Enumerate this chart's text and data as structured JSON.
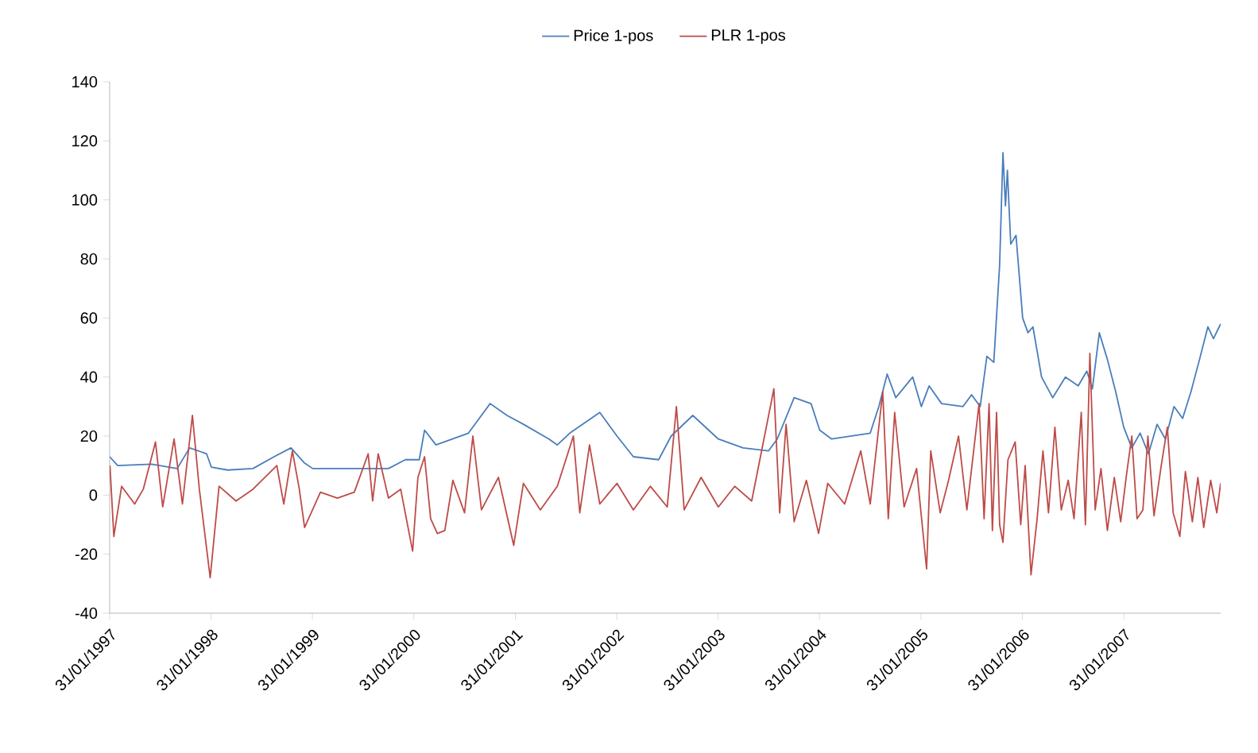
{
  "chart_data": {
    "type": "line",
    "series": [
      {
        "name": "Price 1-pos",
        "color": "#4a7ebb",
        "x": [
          "1997-01-31",
          "1997-03-01",
          "1997-07-01",
          "1997-10-01",
          "1997-11-15",
          "1998-01-15",
          "1998-02-01",
          "1998-04-01",
          "1998-07-01",
          "1998-09-15",
          "1998-11-15",
          "1999-01-01",
          "1999-02-01",
          "1999-07-01",
          "1999-11-01",
          "2000-01-01",
          "2000-02-20",
          "2000-03-10",
          "2000-04-20",
          "2000-08-15",
          "2000-11-01",
          "2001-01-01",
          "2001-03-01",
          "2001-06-01",
          "2001-07-01",
          "2001-08-15",
          "2001-12-01",
          "2002-02-01",
          "2002-04-01",
          "2002-07-01",
          "2002-08-15",
          "2002-11-01",
          "2003-02-01",
          "2003-05-01",
          "2003-08-01",
          "2003-09-01",
          "2003-11-01",
          "2004-01-01",
          "2004-02-01",
          "2004-03-15",
          "2004-08-01",
          "2004-09-01",
          "2004-10-01",
          "2004-11-01",
          "2005-01-01",
          "2005-02-01",
          "2005-03-01",
          "2005-04-15",
          "2005-07-01",
          "2005-08-01",
          "2005-09-01",
          "2005-09-25",
          "2005-10-20",
          "2005-11-10",
          "2005-11-22",
          "2005-12-01",
          "2005-12-08",
          "2005-12-20",
          "2006-01-08",
          "2006-02-01",
          "2006-02-20",
          "2006-03-10",
          "2006-04-10",
          "2006-05-20",
          "2006-07-05",
          "2006-08-20",
          "2006-09-20",
          "2006-10-10",
          "2006-11-04",
          "2006-12-03",
          "2007-01-02",
          "2007-01-31",
          "2007-03-01",
          "2007-03-31",
          "2007-04-30",
          "2007-05-31",
          "2007-06-30",
          "2007-07-31",
          "2007-08-31",
          "2007-09-30",
          "2007-10-31",
          "2007-11-30",
          "2007-12-20",
          "2008-01-15"
        ],
        "values": [
          13,
          10,
          10.5,
          9,
          16,
          14,
          9.5,
          8.5,
          9,
          13,
          16,
          11,
          9,
          9,
          9,
          12,
          12,
          22,
          17,
          21,
          31,
          27,
          24,
          19,
          17,
          21,
          28,
          20,
          13,
          12,
          20,
          27,
          19,
          16,
          15,
          19,
          33,
          31,
          22,
          19,
          21,
          30,
          41,
          33,
          40,
          30,
          37,
          31,
          30,
          34,
          30,
          47,
          45,
          78,
          116,
          98,
          110,
          85,
          88,
          60,
          55,
          57,
          40,
          33,
          40,
          37,
          42,
          36,
          55,
          46,
          35,
          23,
          16,
          21,
          14,
          24,
          19,
          30,
          26,
          35,
          46,
          57,
          53,
          58
        ]
      },
      {
        "name": "PLR 1-pos",
        "color": "#be4b48",
        "x": [
          "1997-02-01",
          "1997-02-15",
          "1997-03-15",
          "1997-05-01",
          "1997-06-01",
          "1997-07-15",
          "1997-08-10",
          "1997-09-20",
          "1997-10-20",
          "1997-11-25",
          "1997-12-20",
          "1998-01-28",
          "1998-03-01",
          "1998-05-01",
          "1998-07-01",
          "1998-09-25",
          "1998-10-20",
          "1998-11-20",
          "1998-12-15",
          "1999-01-03",
          "1999-03-01",
          "1999-05-01",
          "1999-07-01",
          "1999-08-20",
          "1999-09-05",
          "1999-09-25",
          "1999-11-01",
          "1999-12-15",
          "2000-01-27",
          "2000-02-15",
          "2000-03-10",
          "2000-04-01",
          "2000-04-25",
          "2000-05-22",
          "2000-06-20",
          "2000-08-01",
          "2000-08-31",
          "2000-10-01",
          "2000-12-01",
          "2001-01-25",
          "2001-03-01",
          "2001-05-01",
          "2001-07-01",
          "2001-08-28",
          "2001-09-20",
          "2001-10-25",
          "2001-12-01",
          "2002-02-01",
          "2002-04-01",
          "2002-06-01",
          "2002-08-01",
          "2002-09-03",
          "2002-10-01",
          "2002-12-01",
          "2003-02-01",
          "2003-04-01",
          "2003-06-01",
          "2003-08-20",
          "2003-09-10",
          "2003-10-03",
          "2003-11-01",
          "2003-12-15",
          "2004-01-28",
          "2004-03-01",
          "2004-05-01",
          "2004-06-28",
          "2004-08-01",
          "2004-09-15",
          "2004-10-05",
          "2004-10-28",
          "2004-12-01",
          "2005-01-15",
          "2005-02-20",
          "2005-03-07",
          "2005-04-10",
          "2005-05-10",
          "2005-06-15",
          "2005-07-15",
          "2005-08-28",
          "2005-09-15",
          "2005-10-03",
          "2005-10-15",
          "2005-10-30",
          "2005-11-10",
          "2005-11-22",
          "2005-12-10",
          "2006-01-05",
          "2006-01-25",
          "2006-02-10",
          "2006-03-03",
          "2006-03-25",
          "2006-04-15",
          "2006-05-05",
          "2006-05-28",
          "2006-06-20",
          "2006-07-15",
          "2006-08-05",
          "2006-08-31",
          "2006-09-15",
          "2006-10-01",
          "2006-10-20",
          "2006-11-10",
          "2006-12-03",
          "2006-12-28",
          "2007-01-20",
          "2007-02-10",
          "2007-03-01",
          "2007-03-20",
          "2007-04-10",
          "2007-04-28",
          "2007-05-20",
          "2007-06-15",
          "2007-07-07",
          "2007-07-28",
          "2007-08-21",
          "2007-09-10",
          "2007-10-05",
          "2007-10-25",
          "2007-11-15",
          "2007-12-10",
          "2008-01-01",
          "2008-01-15"
        ],
        "values": [
          10,
          -14,
          3,
          -3,
          2,
          18,
          -4,
          19,
          -3,
          27,
          2,
          -28,
          3,
          -2,
          2,
          10,
          -3,
          15,
          2,
          -11,
          1,
          -1,
          1,
          14,
          -2,
          14,
          -1,
          2,
          -19,
          6,
          13,
          -8,
          -13,
          -12,
          5,
          -6,
          20,
          -5,
          6,
          -17,
          4,
          -5,
          3,
          20,
          -6,
          17,
          -3,
          4,
          -5,
          3,
          -4,
          30,
          -5,
          6,
          -4,
          3,
          -2,
          36,
          -6,
          24,
          -9,
          5,
          -13,
          4,
          -3,
          15,
          -3,
          35,
          -8,
          28,
          -4,
          9,
          -25,
          15,
          -6,
          5,
          20,
          -5,
          31,
          -8,
          31,
          -12,
          28,
          -10,
          -16,
          12,
          18,
          -10,
          10,
          -27,
          -8,
          15,
          -6,
          23,
          -5,
          5,
          -8,
          28,
          -10,
          48,
          -5,
          9,
          -12,
          6,
          -9,
          7,
          20,
          -8,
          -5,
          20,
          -7,
          10,
          23,
          -6,
          -14,
          8,
          -9,
          6,
          -11,
          5,
          -6,
          4
        ]
      }
    ],
    "xlim": [
      "1997-01-31",
      "2008-01-15"
    ],
    "xticks": [
      {
        "value": "1997-01-31",
        "label": "31/01/1997"
      },
      {
        "value": "1998-01-31",
        "label": "31/01/1998"
      },
      {
        "value": "1999-01-31",
        "label": "31/01/1999"
      },
      {
        "value": "2000-01-31",
        "label": "31/01/2000"
      },
      {
        "value": "2001-01-31",
        "label": "31/01/2001"
      },
      {
        "value": "2002-01-31",
        "label": "31/01/2002"
      },
      {
        "value": "2003-01-31",
        "label": "31/01/2003"
      },
      {
        "value": "2004-01-31",
        "label": "31/01/2004"
      },
      {
        "value": "2005-01-31",
        "label": "31/01/2005"
      },
      {
        "value": "2006-01-31",
        "label": "31/01/2006"
      },
      {
        "value": "2007-01-31",
        "label": "31/01/2007"
      }
    ],
    "ylim": [
      -40,
      140
    ],
    "yticks": [
      -40,
      -20,
      0,
      20,
      40,
      60,
      80,
      100,
      120,
      140
    ],
    "legend": "top",
    "marker": "none",
    "line_style": "solid",
    "grid": false
  }
}
